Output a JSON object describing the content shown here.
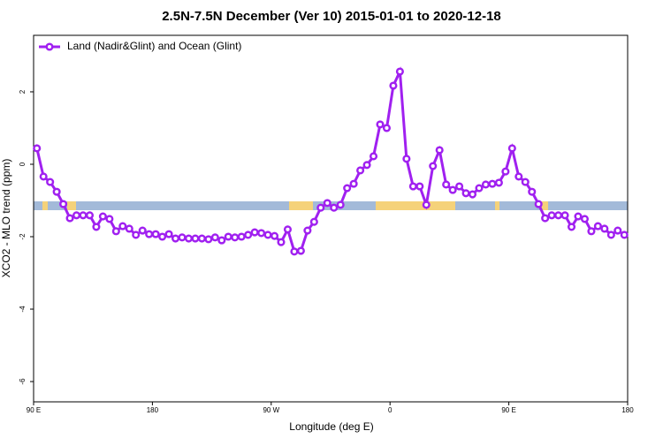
{
  "chart_data": {
    "type": "line",
    "title": "2.5N-7.5N December (Ver 10)   2015-01-01 to 2020-12-18",
    "xlabel": "Longitude (deg E)",
    "ylabel": "XCO2 - MLO trend (ppm)",
    "x": [
      92.5,
      97.5,
      102.5,
      107.5,
      112.5,
      117.5,
      122.5,
      127.5,
      132.5,
      137.5,
      142.5,
      147.5,
      152.5,
      157.5,
      162.5,
      167.5,
      172.5,
      177.5,
      182.5,
      187.5,
      192.5,
      197.5,
      202.5,
      207.5,
      212.5,
      217.5,
      222.5,
      227.5,
      232.5,
      237.5,
      242.5,
      247.5,
      252.5,
      257.5,
      262.5,
      267.5,
      272.5,
      277.5,
      282.5,
      287.5,
      292.5,
      297.5,
      302.5,
      307.5,
      312.5,
      317.5,
      322.5,
      327.5,
      332.5,
      337.5,
      342.5,
      347.5,
      352.5,
      357.5,
      362.5,
      367.5,
      372.5,
      377.5,
      382.5,
      387.5,
      392.5,
      397.5,
      402.5,
      407.5,
      412.5,
      417.5,
      422.5,
      427.5,
      432.5,
      437.5,
      442.5,
      447.5,
      452.5,
      457.5,
      462.5,
      467.5,
      472.5,
      477.5,
      482.5,
      487.5,
      492.5,
      497.5,
      502.5,
      507.5,
      512.5,
      517.5,
      522.5,
      527.5,
      532.5,
      537.5
    ],
    "series": [
      {
        "name": "Land (Nadir&Glint) and Ocean (Glint)",
        "color": "#a020f0",
        "values": [
          0.44,
          -0.34,
          -0.49,
          -0.76,
          -1.1,
          -1.49,
          -1.41,
          -1.41,
          -1.41,
          -1.73,
          -1.44,
          -1.51,
          -1.85,
          -1.71,
          -1.78,
          -1.95,
          -1.83,
          -1.93,
          -1.93,
          -2.0,
          -1.93,
          -2.05,
          -2.02,
          -2.05,
          -2.05,
          -2.05,
          -2.07,
          -2.02,
          -2.1,
          -2.0,
          -2.02,
          -2.0,
          -1.95,
          -1.88,
          -1.9,
          -1.95,
          -1.98,
          -2.15,
          -1.8,
          -2.41,
          -2.39,
          -1.83,
          -1.59,
          -1.2,
          -1.07,
          -1.2,
          -1.12,
          -0.66,
          -0.54,
          -0.17,
          -0.02,
          0.22,
          1.1,
          1.0,
          2.17,
          2.56,
          0.15,
          -0.61,
          -0.61,
          -1.12,
          -0.05,
          0.39,
          -0.56,
          -0.71,
          -0.61,
          -0.8,
          -0.83,
          -0.66,
          -0.56,
          -0.54,
          -0.51,
          -0.2,
          0.44,
          -0.34,
          -0.49,
          -0.76,
          -1.1,
          -1.49,
          -1.41,
          -1.41,
          -1.41,
          -1.73,
          -1.44,
          -1.51,
          -1.85,
          -1.71,
          -1.78,
          -1.95,
          -1.83,
          -1.95
        ]
      }
    ],
    "xlim": [
      90,
      540
    ],
    "xticks": [
      {
        "value": 90,
        "label": "90 E"
      },
      180,
      {
        "value": 270,
        "label": "90 W"
      },
      {
        "value": 360,
        "label": "0"
      },
      {
        "value": 450,
        "label": "90 E"
      },
      {
        "value": 540,
        "label": "180"
      }
    ],
    "ylim": [
      -6.56,
      3.56
    ],
    "yticks": [
      -6,
      -4,
      -2,
      0,
      2
    ],
    "legend": "top-left"
  }
}
